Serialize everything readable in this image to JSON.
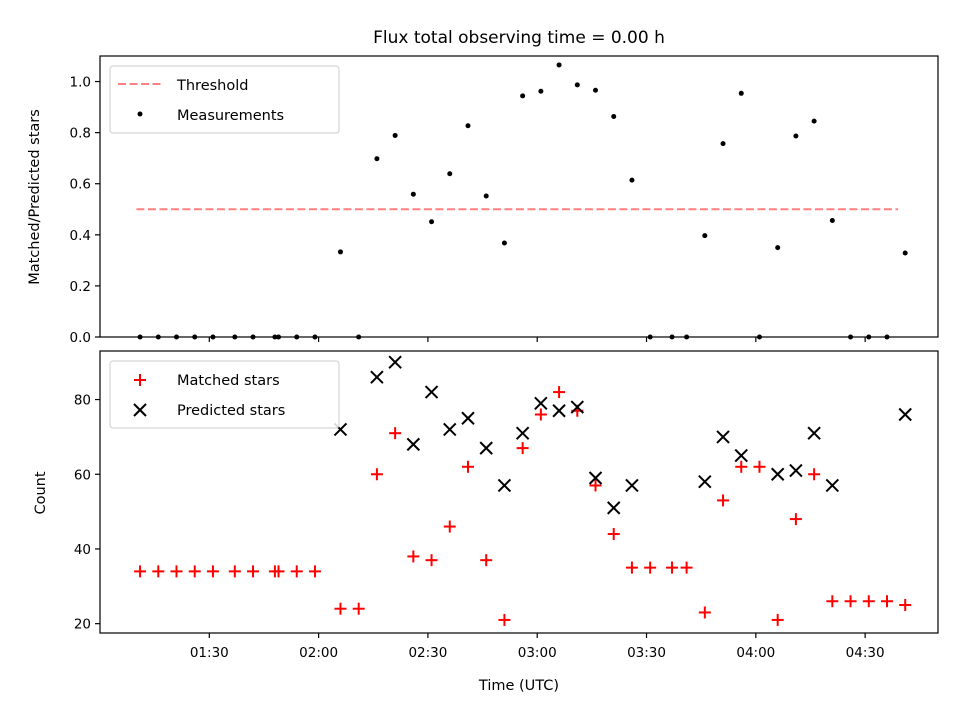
{
  "chart_data": [
    {
      "type": "scatter",
      "title": "Flux total observing time = 0.00 h",
      "ylabel": "Matched/Predicted stars",
      "ylim": [
        0,
        1.1
      ],
      "yticks": [
        0.0,
        0.2,
        0.4,
        0.6,
        0.8,
        1.0
      ],
      "ytick_labels": [
        "0.0",
        "0.2",
        "0.4",
        "0.6",
        "0.8",
        "1.0"
      ],
      "legend": "upper-left",
      "legend_entries": [
        "Threshold",
        "Measurements"
      ],
      "threshold": {
        "name": "Threshold",
        "value": 0.5,
        "x_range": [
          "01:10",
          "04:39"
        ],
        "color": "#ff8080",
        "style": "dashed"
      },
      "series": [
        {
          "name": "Measurements",
          "color": "#000000",
          "marker": "dot",
          "points": [
            [
              "01:11",
              0.0
            ],
            [
              "01:16",
              0.0
            ],
            [
              "01:21",
              0.0
            ],
            [
              "01:26",
              0.0
            ],
            [
              "01:31",
              0.0
            ],
            [
              "01:37",
              0.0
            ],
            [
              "01:42",
              0.0
            ],
            [
              "01:48",
              0.0
            ],
            [
              "01:49",
              0.0
            ],
            [
              "01:54",
              0.0
            ],
            [
              "01:59",
              0.0
            ],
            [
              "02:06",
              0.333
            ],
            [
              "02:11",
              0.0
            ],
            [
              "02:16",
              0.698
            ],
            [
              "02:21",
              0.789
            ],
            [
              "02:26",
              0.559
            ],
            [
              "02:31",
              0.451
            ],
            [
              "02:36",
              0.639
            ],
            [
              "02:41",
              0.827
            ],
            [
              "02:46",
              0.552
            ],
            [
              "02:51",
              0.368
            ],
            [
              "02:56",
              0.944
            ],
            [
              "03:01",
              0.962
            ],
            [
              "03:06",
              1.065
            ],
            [
              "03:11",
              0.987
            ],
            [
              "03:16",
              0.966
            ],
            [
              "03:21",
              0.863
            ],
            [
              "03:26",
              0.614
            ],
            [
              "03:31",
              0.0
            ],
            [
              "03:37",
              0.0
            ],
            [
              "03:41",
              0.0
            ],
            [
              "03:46",
              0.397
            ],
            [
              "03:51",
              0.757
            ],
            [
              "03:56",
              0.954
            ],
            [
              "04:01",
              0.0
            ],
            [
              "04:06",
              0.35
            ],
            [
              "04:11",
              0.787
            ],
            [
              "04:16",
              0.845
            ],
            [
              "04:21",
              0.456
            ],
            [
              "04:26",
              0.0
            ],
            [
              "04:31",
              0.0
            ],
            [
              "04:36",
              0.0
            ],
            [
              "04:41",
              0.329
            ]
          ]
        }
      ]
    },
    {
      "type": "scatter",
      "xlabel": "Time (UTC)",
      "ylabel": "Count",
      "xlim": [
        "01:00",
        "04:50"
      ],
      "xticks": [
        "01:30",
        "02:00",
        "02:30",
        "03:00",
        "03:30",
        "04:00",
        "04:30"
      ],
      "ylim": [
        17.5,
        93
      ],
      "yticks": [
        20,
        40,
        60,
        80
      ],
      "ytick_labels": [
        "20",
        "40",
        "60",
        "80"
      ],
      "legend": "upper-left",
      "legend_entries": [
        "Matched stars",
        "Predicted stars"
      ],
      "series": [
        {
          "name": "Matched stars",
          "color": "#ff0000",
          "marker": "plus",
          "points": [
            [
              "01:11",
              34
            ],
            [
              "01:16",
              34
            ],
            [
              "01:21",
              34
            ],
            [
              "01:26",
              34
            ],
            [
              "01:31",
              34
            ],
            [
              "01:37",
              34
            ],
            [
              "01:42",
              34
            ],
            [
              "01:48",
              34
            ],
            [
              "01:49",
              34
            ],
            [
              "01:54",
              34
            ],
            [
              "01:59",
              34
            ],
            [
              "02:06",
              24
            ],
            [
              "02:11",
              24
            ],
            [
              "02:16",
              60
            ],
            [
              "02:21",
              71
            ],
            [
              "02:26",
              38
            ],
            [
              "02:31",
              37
            ],
            [
              "02:36",
              46
            ],
            [
              "02:41",
              62
            ],
            [
              "02:46",
              37
            ],
            [
              "02:51",
              21
            ],
            [
              "02:56",
              67
            ],
            [
              "03:01",
              76
            ],
            [
              "03:06",
              82
            ],
            [
              "03:11",
              77
            ],
            [
              "03:16",
              57
            ],
            [
              "03:21",
              44
            ],
            [
              "03:26",
              35
            ],
            [
              "03:31",
              35
            ],
            [
              "03:37",
              35
            ],
            [
              "03:41",
              35
            ],
            [
              "03:46",
              23
            ],
            [
              "03:51",
              53
            ],
            [
              "03:56",
              62
            ],
            [
              "04:01",
              62
            ],
            [
              "04:06",
              21
            ],
            [
              "04:11",
              48
            ],
            [
              "04:16",
              60
            ],
            [
              "04:21",
              26
            ],
            [
              "04:26",
              26
            ],
            [
              "04:31",
              26
            ],
            [
              "04:36",
              26
            ],
            [
              "04:41",
              25
            ]
          ]
        },
        {
          "name": "Predicted stars",
          "color": "#000000",
          "marker": "x",
          "points": [
            [
              "02:06",
              72
            ],
            [
              "02:16",
              86
            ],
            [
              "02:21",
              90
            ],
            [
              "02:26",
              68
            ],
            [
              "02:31",
              82
            ],
            [
              "02:36",
              72
            ],
            [
              "02:41",
              75
            ],
            [
              "02:46",
              67
            ],
            [
              "02:51",
              57
            ],
            [
              "02:56",
              71
            ],
            [
              "03:01",
              79
            ],
            [
              "03:06",
              77
            ],
            [
              "03:11",
              78
            ],
            [
              "03:16",
              59
            ],
            [
              "03:21",
              51
            ],
            [
              "03:26",
              57
            ],
            [
              "03:46",
              58
            ],
            [
              "03:51",
              70
            ],
            [
              "03:56",
              65
            ],
            [
              "04:06",
              60
            ],
            [
              "04:11",
              61
            ],
            [
              "04:16",
              71
            ],
            [
              "04:21",
              57
            ],
            [
              "04:41",
              76
            ]
          ]
        }
      ]
    }
  ]
}
